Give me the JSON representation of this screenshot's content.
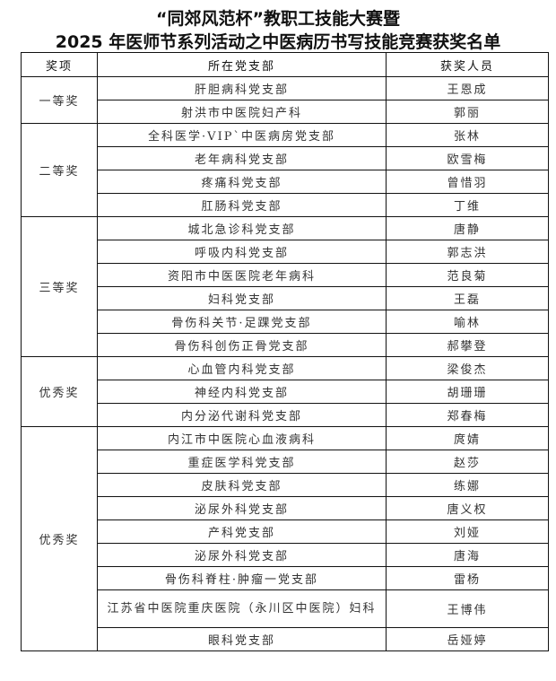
{
  "title_line1": "“同郊风范杯”教职工技能大赛暨",
  "title_line2": "2025 年医师节系列活动之中医病历书写技能竞赛获奖名单",
  "headers": [
    "奖项",
    "所在党支部",
    "获奖人员"
  ],
  "groups": [
    {
      "award": "一等奖",
      "rows": [
        {
          "branch": "肝胆病科党支部",
          "name": "王恩成"
        },
        {
          "branch": "射洪市中医院妇产科",
          "name": "郭丽"
        }
      ]
    },
    {
      "award": "二等奖",
      "rows": [
        {
          "branch": "全科医学·VIP`中医病房党支部",
          "name": "张林"
        },
        {
          "branch": "老年病科党支部",
          "name": "欧雪梅"
        },
        {
          "branch": "疼痛科党支部",
          "name": "曾惜羽"
        },
        {
          "branch": "肛肠科党支部",
          "name": "丁维"
        }
      ]
    },
    {
      "award": "三等奖",
      "rows": [
        {
          "branch": "城北急诊科党支部",
          "name": "唐静"
        },
        {
          "branch": "呼吸内科党支部",
          "name": "郭志洪"
        },
        {
          "branch": "资阳市中医医院老年病科",
          "name": "范良菊"
        },
        {
          "branch": "妇科党支部",
          "name": "王磊"
        },
        {
          "branch": "骨伤科关节·足踝党支部",
          "name": "喻林"
        },
        {
          "branch": "骨伤科创伤正骨党支部",
          "name": "郝攀登"
        }
      ]
    },
    {
      "award": "优秀奖",
      "rows": [
        {
          "branch": "心血管内科党支部",
          "name": "梁俊杰"
        },
        {
          "branch": "神经内科党支部",
          "name": "胡珊珊"
        },
        {
          "branch": "内分泌代谢科党支部",
          "name": "郑春梅"
        }
      ]
    },
    {
      "award": "优秀奖",
      "rows": [
        {
          "branch": "内江市中医院心血液病科",
          "name": "庹婧"
        },
        {
          "branch": "重症医学科党支部",
          "name": "赵莎"
        },
        {
          "branch": "皮肤科党支部",
          "name": "练娜"
        },
        {
          "branch": "泌尿外科党支部",
          "name": "唐义权"
        },
        {
          "branch": "产科党支部",
          "name": "刘娅"
        },
        {
          "branch": "泌尿外科党支部",
          "name": "唐海"
        },
        {
          "branch": "骨伤科脊柱·肿瘤一党支部",
          "name": "雷杨"
        },
        {
          "branch": "江苏省中医院重庆医院（永川区中医院）妇科",
          "name": "王博伟"
        },
        {
          "branch": "眼科党支部",
          "name": "岳娅婷"
        }
      ]
    }
  ]
}
